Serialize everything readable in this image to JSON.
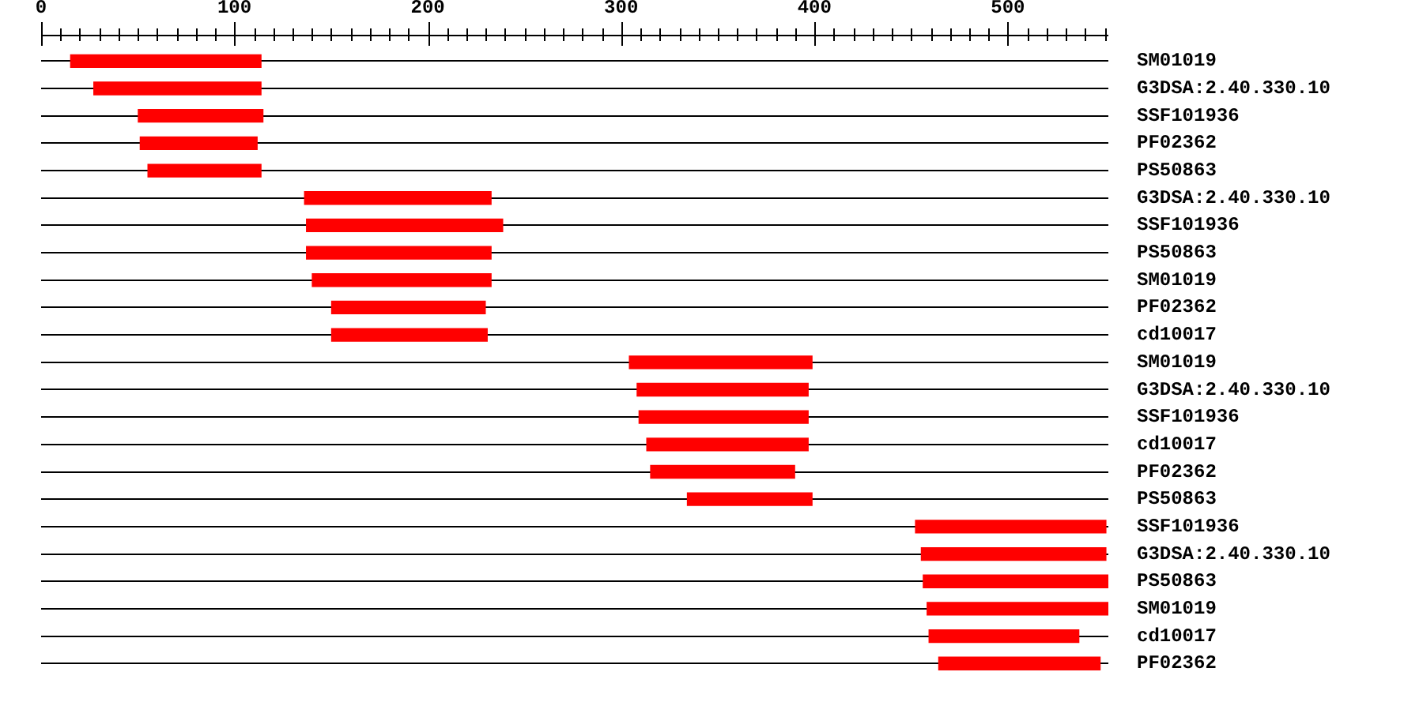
{
  "chart_data": {
    "type": "bar",
    "orientation": "horizontal",
    "categories": [
      "SM01019",
      "G3DSA:2.40.330.10",
      "SSF101936",
      "PF02362",
      "PS50863",
      "G3DSA:2.40.330.10",
      "SSF101936",
      "PS50863",
      "SM01019",
      "PF02362",
      "cd10017",
      "SM01019",
      "G3DSA:2.40.330.10",
      "SSF101936",
      "cd10017",
      "PF02362",
      "PS50863",
      "SSF101936",
      "G3DSA:2.40.330.10",
      "PS50863",
      "SM01019",
      "cd10017",
      "PF02362"
    ],
    "base": [
      15,
      27,
      50,
      51,
      55,
      136,
      137,
      137,
      140,
      150,
      150,
      304,
      308,
      309,
      313,
      315,
      334,
      452,
      455,
      456,
      458,
      459,
      464
    ],
    "values": [
      99,
      87,
      65,
      61,
      59,
      97,
      102,
      96,
      93,
      80,
      81,
      95,
      89,
      88,
      84,
      75,
      65,
      99,
      96,
      96,
      94,
      78,
      84
    ],
    "color": "#ff0000",
    "xlim": [
      0,
      552
    ],
    "xticks": [
      0,
      {
        "value": 10,
        "label": null
      },
      {
        "value": 20,
        "label": null
      },
      {
        "value": 30,
        "label": null
      },
      {
        "value": 40,
        "label": null
      },
      {
        "value": 50,
        "label": null
      },
      {
        "value": 60,
        "label": null
      },
      {
        "value": 70,
        "label": null
      },
      {
        "value": 80,
        "label": null
      },
      {
        "value": 90,
        "label": null
      },
      100,
      {
        "value": 110,
        "label": null
      },
      {
        "value": 120,
        "label": null
      },
      {
        "value": 130,
        "label": null
      },
      {
        "value": 140,
        "label": null
      },
      {
        "value": 150,
        "label": null
      },
      {
        "value": 160,
        "label": null
      },
      {
        "value": 170,
        "label": null
      },
      {
        "value": 180,
        "label": null
      },
      {
        "value": 190,
        "label": null
      },
      200,
      {
        "value": 210,
        "label": null
      },
      {
        "value": 220,
        "label": null
      },
      {
        "value": 230,
        "label": null
      },
      {
        "value": 240,
        "label": null
      },
      {
        "value": 250,
        "label": null
      },
      {
        "value": 260,
        "label": null
      },
      {
        "value": 270,
        "label": null
      },
      {
        "value": 280,
        "label": null
      },
      {
        "value": 290,
        "label": null
      },
      300,
      {
        "value": 310,
        "label": null
      },
      {
        "value": 320,
        "label": null
      },
      {
        "value": 330,
        "label": null
      },
      {
        "value": 340,
        "label": null
      },
      {
        "value": 350,
        "label": null
      },
      {
        "value": 360,
        "label": null
      },
      {
        "value": 370,
        "label": null
      },
      {
        "value": 380,
        "label": null
      },
      {
        "value": 390,
        "label": null
      },
      400,
      {
        "value": 410,
        "label": null
      },
      {
        "value": 420,
        "label": null
      },
      {
        "value": 430,
        "label": null
      },
      {
        "value": 440,
        "label": null
      },
      {
        "value": 450,
        "label": null
      },
      {
        "value": 460,
        "label": null
      },
      {
        "value": 470,
        "label": null
      },
      {
        "value": 480,
        "label": null
      },
      {
        "value": 490,
        "label": null
      },
      500,
      {
        "value": 510,
        "label": null
      },
      {
        "value": 520,
        "label": null
      },
      {
        "value": 530,
        "label": null
      },
      {
        "value": 540,
        "label": null
      },
      {
        "value": 550,
        "label": null
      }
    ],
    "grid": "y"
  }
}
